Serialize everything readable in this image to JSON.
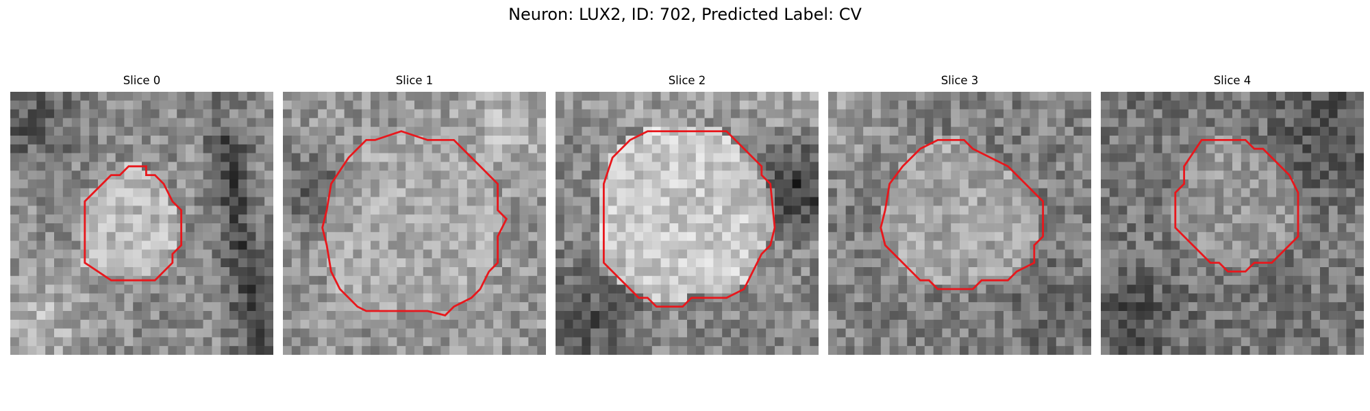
{
  "figure": {
    "suptitle": "Neuron: LUX2, ID: 702, Predicted Label: CV",
    "outline_color": "#e8171c",
    "colormap": "grayscale",
    "panels": [
      {
        "title": "Slice 0",
        "seed": 11,
        "base": 140,
        "cell_intensity": 185,
        "features": [
          {
            "kind": "dark-band",
            "shape": "diagonal-right",
            "strength": 70
          },
          {
            "kind": "dark-patch",
            "shape": "top-left",
            "strength": 55
          },
          {
            "kind": "bright-patch",
            "shape": "bottom-left",
            "strength": 45
          }
        ]
      },
      {
        "title": "Slice 1",
        "seed": 23,
        "base": 150,
        "cell_intensity": 170,
        "features": [
          {
            "kind": "dark-patch",
            "shape": "left-mid",
            "strength": 55
          },
          {
            "kind": "bright-patch",
            "shape": "top-right",
            "strength": 35
          }
        ]
      },
      {
        "title": "Slice 2",
        "seed": 37,
        "base": 135,
        "cell_intensity": 200,
        "features": [
          {
            "kind": "dark-patch",
            "shape": "right-mid",
            "strength": 85
          },
          {
            "kind": "dark-patch",
            "shape": "bottom-left",
            "strength": 60
          },
          {
            "kind": "bright-patch",
            "shape": "top-strip",
            "strength": 30
          }
        ]
      },
      {
        "title": "Slice 3",
        "seed": 51,
        "base": 128,
        "cell_intensity": 165,
        "features": [
          {
            "kind": "bright-patch",
            "shape": "top-left",
            "strength": 35
          },
          {
            "kind": "dark-patch",
            "shape": "bottom-right",
            "strength": 30
          }
        ]
      },
      {
        "title": "Slice 4",
        "seed": 67,
        "base": 118,
        "cell_intensity": 150,
        "features": [
          {
            "kind": "dark-patch",
            "shape": "top-right",
            "strength": 45
          },
          {
            "kind": "dark-patch",
            "shape": "bottom-left",
            "strength": 40
          }
        ]
      }
    ]
  }
}
